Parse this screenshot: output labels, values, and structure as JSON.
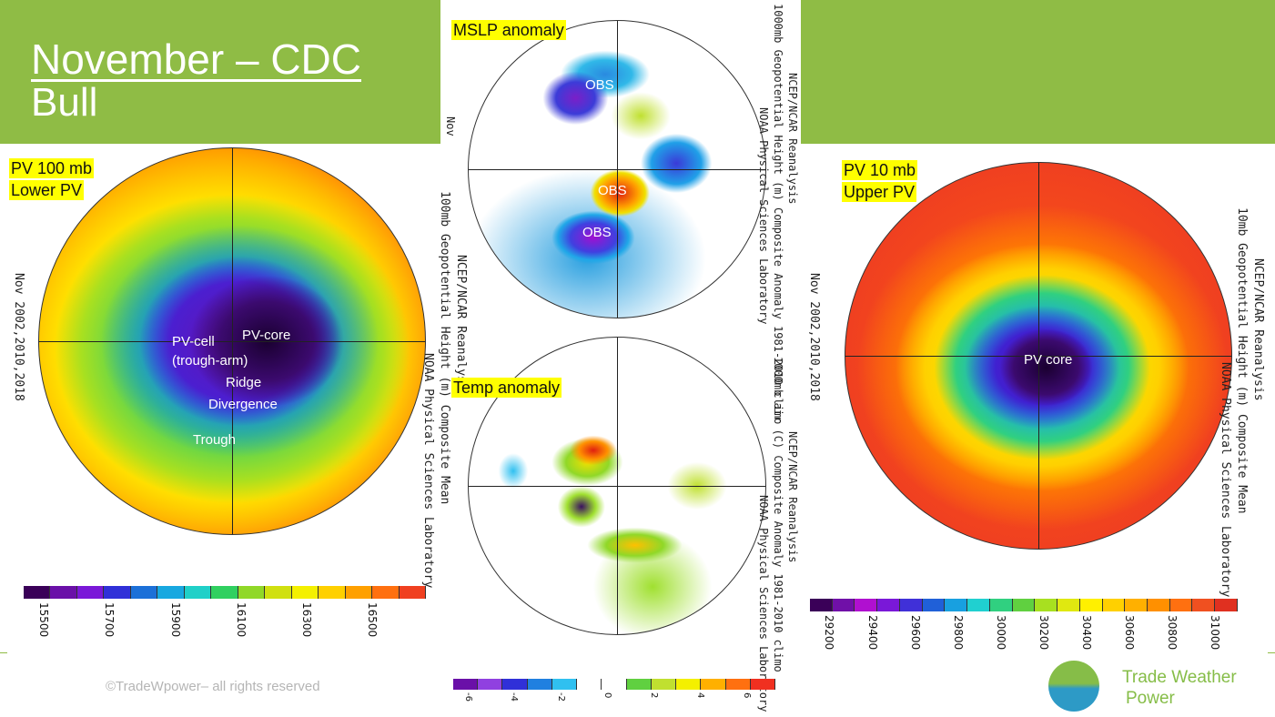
{
  "slide": {
    "title_line1": "November – CDC",
    "title_line2": "Bull",
    "copyright": "©TradeWpower– all rights reserved",
    "logo_line1": "Trade Weather",
    "logo_line2": "Power"
  },
  "colors": {
    "brand_green": "#8fbc45",
    "highlight": "#ffff00"
  },
  "left_map": {
    "label1": "PV 100 mb",
    "label2": "Lower PV",
    "annotations": [
      "PV-cell",
      "(trough-arm)",
      "PV-core",
      "Ridge",
      "Divergence",
      "Trough"
    ],
    "side_title1": "NCEP/NCAR Reanalysis",
    "side_title2": "100mb Geopotential Height (m) Composite Mean",
    "side_title3": "NOAA Physical Sciences Laboratory",
    "date_text": "Nov 2002,2010,2018",
    "colorbar_ticks": [
      "15500",
      "15700",
      "15900",
      "16100",
      "16300",
      "16500"
    ]
  },
  "mslp_map": {
    "label": "MSLP anomaly",
    "annotations": [
      "OBS",
      "OBS",
      "OBS"
    ],
    "side_title1": "NCEP/NCAR Reanalysis",
    "side_title2": "1000mb Geopotential Height (m) Composite Anomaly 1981-2010 climo",
    "side_title3": "NOAA Physical Sciences Laboratory",
    "date_text": "Nov"
  },
  "temp_map": {
    "label": "Temp anomaly",
    "side_title1": "NCEP/NCAR Reanalysis",
    "side_title2": "1000mb air (C) Composite Anomaly 1981-2010 climo",
    "side_title3": "NOAA Physical Sciences Laboratory",
    "colorbar_ticks": [
      "-6",
      "-4",
      "-2",
      "0",
      "2",
      "4",
      "6"
    ]
  },
  "right_map": {
    "label1": "PV 10 mb",
    "label2": "Upper PV",
    "annotations": [
      "PV core"
    ],
    "side_title1": "NCEP/NCAR Reanalysis",
    "side_title2": "10mb Geopotential Height (m) Composite Mean",
    "side_title3": "NOAA Physical Sciences Laboratory",
    "date_text": "Nov 2002,2010,2018",
    "colorbar_ticks": [
      "29200",
      "29400",
      "29600",
      "29800",
      "30000",
      "30200",
      "30400",
      "30600",
      "30800",
      "31000"
    ]
  }
}
